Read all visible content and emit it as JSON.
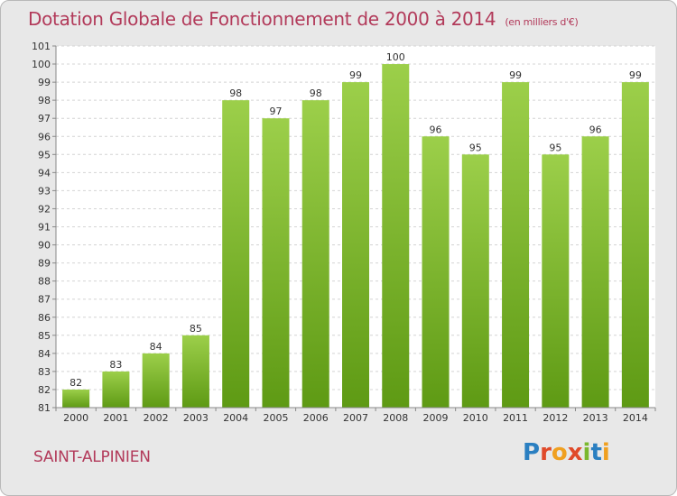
{
  "chart_data": {
    "type": "bar",
    "title": "Dotation Globale de Fonctionnement de 2000 à 2014",
    "subtitle": "(en milliers d'€)",
    "categories": [
      "2000",
      "2001",
      "2002",
      "2003",
      "2004",
      "2005",
      "2006",
      "2007",
      "2008",
      "2009",
      "2010",
      "2011",
      "2012",
      "2013",
      "2014"
    ],
    "values": [
      82,
      83,
      84,
      85,
      98,
      97,
      98,
      99,
      100,
      96,
      95,
      99,
      95,
      96,
      99
    ],
    "ylim": [
      81,
      101
    ],
    "yticks": [
      "81",
      "82",
      "83",
      "84",
      "85",
      "86",
      "87",
      "88",
      "89",
      "90",
      "91",
      "92",
      "93",
      "94",
      "95",
      "96",
      "97",
      "98",
      "99",
      "100",
      "101"
    ],
    "grid": true,
    "bar_color_top": "#9ccf4a",
    "bar_color_bottom": "#5e9a14"
  },
  "footer": {
    "commune": "SAINT-ALPINIEN",
    "logo_letters": [
      "P",
      "r",
      "o",
      "x",
      "i",
      "t",
      "i"
    ],
    "logo_colors": [
      "#2a7fc1",
      "#e04a2a",
      "#f0a020",
      "#e04a2a",
      "#7ab82e",
      "#2a7fc1",
      "#f0a020"
    ]
  }
}
